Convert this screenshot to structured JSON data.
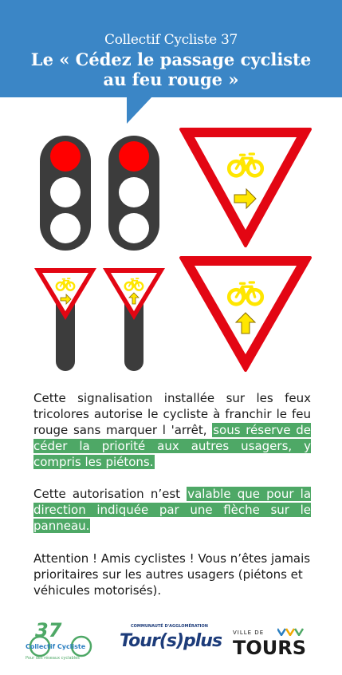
{
  "header": {
    "subtitle": "Collectif Cycliste 37",
    "title_line1": "Le « Cédez le passage cycliste",
    "title_line2": "au feu rouge »",
    "color": "#3b86c6"
  },
  "colors": {
    "light_red": "#ff0000",
    "light_off": "#ffffff",
    "pole": "#3c3c3c",
    "sign_border": "#e30613",
    "bike": "#ffe600",
    "highlight": "#4ea866"
  },
  "paragraph1": {
    "plain": "Cette signalisation installée sur les feux tricolores autorise le cycliste à franchir le feu rouge sans marquer l 'arrêt, ",
    "highlight": "sous réserve de céder la priorité aux autres usagers, y compris les piétons."
  },
  "paragraph2": {
    "plain": "Cette autorisation n’est ",
    "highlight": "valable que pour la direction indiquée par une flèche sur le panneau."
  },
  "paragraph3": {
    "text": "Attention ! Amis cyclistes ! Vous n’êtes jamais prioritaires sur les autres usagers (piétons et véhicules motorisés)."
  },
  "logos": {
    "collectif_number": "37",
    "collectif_name": "Collectif Cycliste",
    "collectif_tagline": "Pour des réseaux cyclables",
    "tourplus_top": "COMMUNAUTÉ D'AGGLOMÉRATION",
    "tourplus_name": "Tour(s)plus",
    "tours_ville": "VILLE DE",
    "tours_name": "TOURS"
  }
}
